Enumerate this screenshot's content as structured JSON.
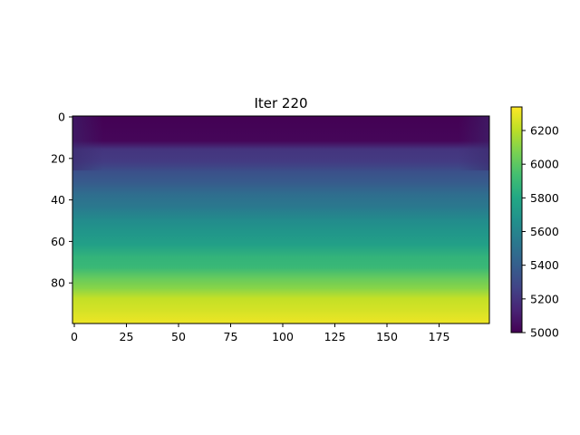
{
  "chart_data": {
    "type": "heatmap",
    "title": "Iter 220",
    "xlabel": "",
    "ylabel": "",
    "x_range": [
      0,
      200
    ],
    "y_range": [
      0,
      100
    ],
    "y_inverted": true,
    "x_ticks": [
      0,
      25,
      50,
      75,
      100,
      125,
      150,
      175
    ],
    "y_ticks": [
      0,
      20,
      40,
      60,
      80
    ],
    "colormap": "viridis",
    "colorbar": {
      "range": [
        5000,
        6340
      ],
      "ticks": [
        5000,
        5200,
        5400,
        5600,
        5800,
        6000,
        6200
      ],
      "placement": "right"
    },
    "row_profile": [
      {
        "depth": 0,
        "value": 5000
      },
      {
        "depth": 12,
        "value": 5020
      },
      {
        "depth": 16,
        "value": 5200
      },
      {
        "depth": 22,
        "value": 5230
      },
      {
        "depth": 27,
        "value": 5330
      },
      {
        "depth": 32,
        "value": 5380
      },
      {
        "depth": 38,
        "value": 5480
      },
      {
        "depth": 44,
        "value": 5540
      },
      {
        "depth": 50,
        "value": 5640
      },
      {
        "depth": 56,
        "value": 5700
      },
      {
        "depth": 62,
        "value": 5760
      },
      {
        "depth": 68,
        "value": 5870
      },
      {
        "depth": 73,
        "value": 5900
      },
      {
        "depth": 78,
        "value": 6020
      },
      {
        "depth": 83,
        "value": 6100
      },
      {
        "depth": 88,
        "value": 6220
      },
      {
        "depth": 93,
        "value": 6250
      },
      {
        "depth": 99,
        "value": 6300
      }
    ],
    "grid": false
  }
}
